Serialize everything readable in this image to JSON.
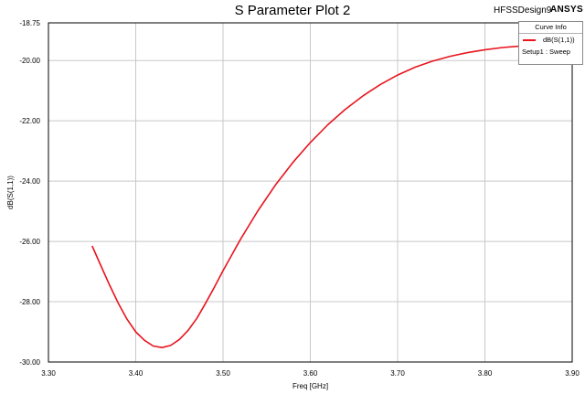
{
  "title": "S Parameter Plot 2",
  "design_name": "HFSSDesign9",
  "brand": "ANSYS",
  "legend": {
    "title": "Curve Info",
    "series_label": "dB(S(1,1))",
    "setup_label": "Setup1 : Sweep"
  },
  "colors": {
    "curve": "#e8141e",
    "grid": "#c8c8c8",
    "axis": "#000000"
  },
  "chart_data": {
    "type": "line",
    "title": "S Parameter Plot 2",
    "xlabel": "Freq [GHz]",
    "ylabel": "dB(S(1,1))",
    "xlim": [
      3.3,
      3.9
    ],
    "ylim": [
      -30.0,
      -18.75
    ],
    "x_ticks": [
      "3.30",
      "3.40",
      "3.50",
      "3.60",
      "3.70",
      "3.80",
      "3.90"
    ],
    "y_ticks": [
      "-18.75",
      "-20.00",
      "-22.00",
      "-24.00",
      "-26.00",
      "-28.00",
      "-30.00"
    ],
    "grid": true,
    "legend_position": "top-right",
    "series": [
      {
        "name": "dB(S(1,1))",
        "x": [
          3.35,
          3.36,
          3.37,
          3.38,
          3.39,
          3.4,
          3.41,
          3.42,
          3.43,
          3.44,
          3.45,
          3.46,
          3.47,
          3.48,
          3.49,
          3.5,
          3.52,
          3.54,
          3.56,
          3.58,
          3.6,
          3.62,
          3.64,
          3.66,
          3.68,
          3.7,
          3.72,
          3.74,
          3.76,
          3.78,
          3.8,
          3.82,
          3.84,
          3.85
        ],
        "y": [
          -26.15,
          -26.8,
          -27.45,
          -28.05,
          -28.58,
          -29.0,
          -29.28,
          -29.47,
          -29.52,
          -29.45,
          -29.25,
          -28.95,
          -28.55,
          -28.05,
          -27.52,
          -26.97,
          -25.93,
          -24.98,
          -24.13,
          -23.38,
          -22.72,
          -22.13,
          -21.62,
          -21.18,
          -20.8,
          -20.48,
          -20.22,
          -20.02,
          -19.86,
          -19.74,
          -19.64,
          -19.57,
          -19.52,
          -19.5
        ]
      }
    ]
  }
}
